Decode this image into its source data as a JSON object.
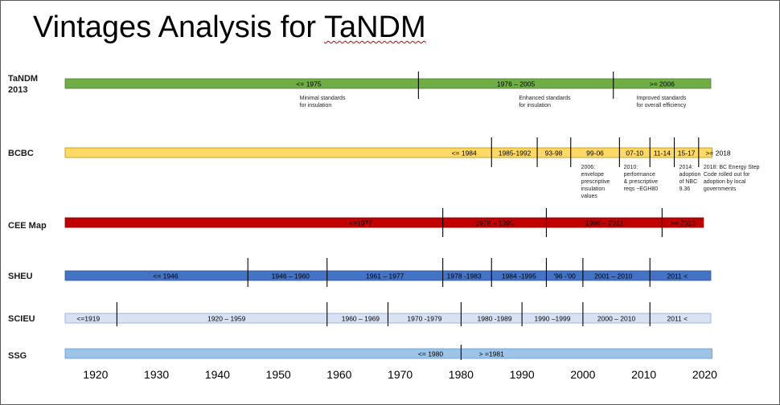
{
  "slide": {
    "title_prefix": "Vintages Analysis for ",
    "title_underlined": "TaNDM"
  },
  "chart_data": {
    "type": "timeline",
    "title": "Vintages Analysis for TaNDM",
    "x_axis": {
      "min": 1915,
      "max": 2028,
      "ticks": [
        1920,
        1930,
        1940,
        1950,
        1960,
        1970,
        1980,
        1990,
        2000,
        2010,
        2020
      ]
    },
    "rows": [
      {
        "name": "TaNDM 2013",
        "name_lines": [
          "TaNDM",
          "2013"
        ],
        "color": "#70ad47",
        "border": "#507e32",
        "end_year": 2021,
        "dividers": [
          1973,
          2005
        ],
        "segments": [
          {
            "label": "<= 1975",
            "x": 1955
          },
          {
            "label": "1976 – 2005",
            "x": 1989
          },
          {
            "label": ">= 2006",
            "x": 2013
          }
        ],
        "notes": [
          {
            "lines": [
              "Minimal standards",
              "for insulation"
            ],
            "x": 1953.5
          },
          {
            "lines": [
              "Enhanced  standards",
              "for insulation"
            ],
            "x": 1989.5
          },
          {
            "lines": [
              "Improved standards",
              "for overall efficiency"
            ],
            "x": 2008.8
          }
        ]
      },
      {
        "name": "BCBC",
        "name_lines": [
          "BCBC"
        ],
        "color": "#ffd966",
        "border": "#bf9000",
        "end_year": 2021.2,
        "dividers": [
          1985,
          1992.5,
          1998,
          2006,
          2011,
          2015,
          2019
        ],
        "segments": [
          {
            "label": "<= 1984",
            "x": 1980.5
          },
          {
            "label": "1985-1992",
            "x": 1988.8
          },
          {
            "label": "93-98",
            "x": 1995.2
          },
          {
            "label": "99-06",
            "x": 2002
          },
          {
            "label": "07-10",
            "x": 2008.5
          },
          {
            "label": "11-14",
            "x": 2013
          },
          {
            "label": "15-17",
            "x": 2017
          },
          {
            "label": ">= 2018",
            "x": 2022.2
          }
        ],
        "notes": [
          {
            "lines": [
              "2006:",
              "envelope",
              "prescriptive",
              "insulation",
              "values"
            ],
            "x": 1999.7
          },
          {
            "lines": [
              "2010:",
              "performance",
              "& prescriptive",
              "reqs ~EGH80"
            ],
            "x": 2006.7
          },
          {
            "lines": [
              "2014:",
              "adoption",
              "of NBC",
              "9.36"
            ],
            "x": 2015.8
          },
          {
            "lines": [
              "2018: BC Energy Step",
              "Code rolled out for",
              "adoption by local",
              "governments"
            ],
            "x": 2019.8
          }
        ]
      },
      {
        "name": "CEE Map",
        "name_lines": [
          "CEE Map"
        ],
        "color": "#c00000",
        "border": "#8b0000",
        "end_year": 2019.8,
        "dividers": [
          1977,
          1994,
          2013
        ],
        "segments": [
          {
            "label": "<=1977",
            "x": 1963.5
          },
          {
            "label": "1978 – 1995",
            "x": 1985.5
          },
          {
            "label": "1996 – 2012",
            "x": 2003.5
          },
          {
            "label": ">= 2013",
            "x": 2016.4
          }
        ],
        "notes": []
      },
      {
        "name": "SHEU",
        "name_lines": [
          "SHEU"
        ],
        "color": "#4472c4",
        "border": "#2f5597",
        "end_year": 2021,
        "dividers": [
          1945,
          1958,
          1977,
          1985,
          1994,
          2000,
          2011
        ],
        "segments": [
          {
            "label": "<= 1946",
            "x": 1931.5
          },
          {
            "label": "1946 – 1960",
            "x": 1952
          },
          {
            "label": "1961 – 1977",
            "x": 1967.5
          },
          {
            "label": "1978 -1983",
            "x": 1980.5
          },
          {
            "label": "1984 -1995",
            "x": 1989.5
          },
          {
            "label": "'96 -'00",
            "x": 1997
          },
          {
            "label": "2001 – 2010",
            "x": 2005
          },
          {
            "label": "2011 <",
            "x": 2015.5
          }
        ],
        "notes": []
      },
      {
        "name": "SCIEU",
        "name_lines": [
          "SCIEU"
        ],
        "color": "#d9e2f3",
        "border": "#8ea9db",
        "end_year": 2021,
        "dividers": [
          1923.5,
          1958,
          1968,
          1980,
          1990,
          2000,
          2011
        ],
        "segments": [
          {
            "label": "<=1919",
            "x": 1918.8
          },
          {
            "label": "1920 – 1959",
            "x": 1941.5
          },
          {
            "label": "1960 – 1969",
            "x": 1963.5
          },
          {
            "label": "1970 -1979",
            "x": 1974
          },
          {
            "label": "1980 -1989",
            "x": 1985.5
          },
          {
            "label": "1990 –1999",
            "x": 1995
          },
          {
            "label": "2000 – 2010",
            "x": 2005.5
          },
          {
            "label": "2011 <",
            "x": 2015.5
          }
        ],
        "notes": []
      },
      {
        "name": "SSG",
        "name_lines": [
          "SSG"
        ],
        "color": "#9dc3e6",
        "border": "#5b9bd5",
        "end_year": 2021.2,
        "dividers": [
          1980
        ],
        "segments": [
          {
            "label": "<= 1980",
            "x": 1975
          },
          {
            "label": "> =1981",
            "x": 1985
          }
        ],
        "notes": []
      }
    ]
  }
}
